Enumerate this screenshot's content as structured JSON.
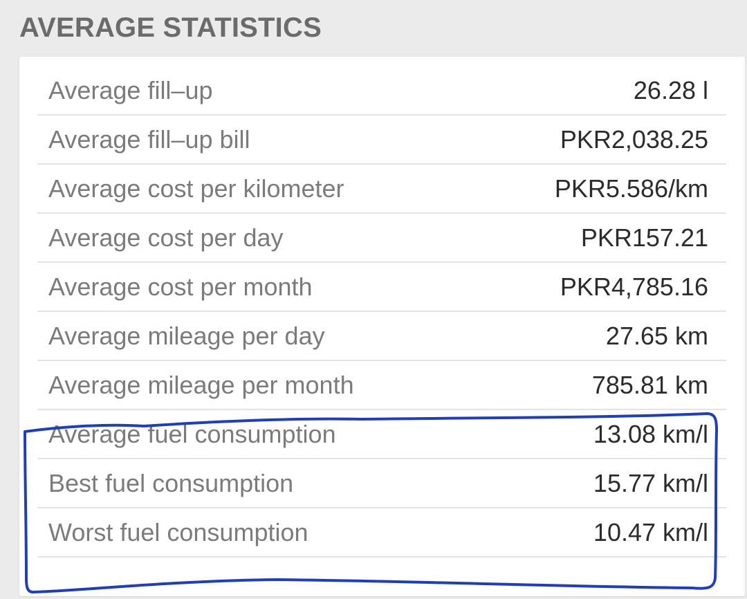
{
  "section": {
    "title": "AVERAGE STATISTICS"
  },
  "stats": [
    {
      "label": "Average fill–up",
      "value": "26.28 l"
    },
    {
      "label": "Average fill–up bill",
      "value": "PKR2,038.25"
    },
    {
      "label": "Average cost per kilometer",
      "value": "PKR5.586/km"
    },
    {
      "label": "Average cost per day",
      "value": "PKR157.21"
    },
    {
      "label": "Average cost per month",
      "value": "PKR4,785.16"
    },
    {
      "label": "Average mileage per day",
      "value": "27.65 km"
    },
    {
      "label": "Average mileage per month",
      "value": "785.81 km"
    },
    {
      "label": "Average fuel consumption",
      "value": "13.08 km/l"
    },
    {
      "label": "Best fuel consumption",
      "value": "15.77 km/l"
    },
    {
      "label": "Worst fuel consumption",
      "value": "10.47 km/l"
    }
  ],
  "colors": {
    "background": "#ebebeb",
    "card": "#ffffff",
    "title": "#6b6b6b",
    "label": "#7b7b7b",
    "value": "#2b2b2b",
    "divider": "#e4e4e4",
    "annotation": "#1f3fb8"
  }
}
